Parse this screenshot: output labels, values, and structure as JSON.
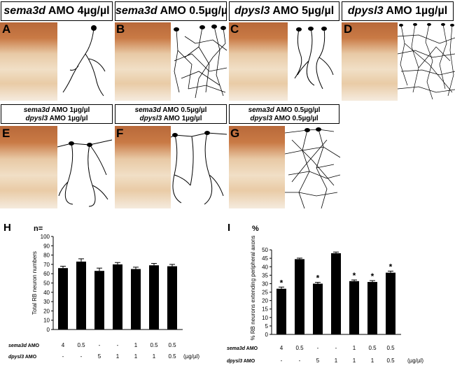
{
  "row1_headers": [
    {
      "gene": "sema3d",
      "rest": " AMO 4µg/µl"
    },
    {
      "gene": "sema3d",
      "rest": " AMO 0.5µg/µl"
    },
    {
      "gene": "dpysl3",
      "rest": " AMO 5µg/µl"
    },
    {
      "gene": "dpysl3",
      "rest": " AMO 1µg/µl"
    }
  ],
  "row2_headers": [
    {
      "line1_gene": "sema3d",
      "line1_rest": " AMO 1µg/µl",
      "line2_gene": "dpysl3",
      "line2_rest": " AMO 1µg/µl"
    },
    {
      "line1_gene": "sema3d",
      "line1_rest": " AMO 0.5µg/µl",
      "line2_gene": "dpysl3",
      "line2_rest": " AMO 1µg/µl"
    },
    {
      "line1_gene": "sema3d",
      "line1_rest": " AMO 0.5µg/µl",
      "line2_gene": "dpysl3",
      "line2_rest": " AMO 0.5µg/µl"
    }
  ],
  "panel_labels": [
    "A",
    "B",
    "C",
    "D",
    "E",
    "F",
    "G"
  ],
  "colors": {
    "stain": "#c07040",
    "bar": "#000000"
  },
  "chart_data": [
    {
      "panel": "H",
      "type": "bar",
      "title": "",
      "n_label": "n=",
      "ylabel": "Total RB neuron numbers",
      "ylim": [
        0,
        100
      ],
      "yticks": [
        "0",
        "10",
        "20",
        "30",
        "40",
        "50",
        "60",
        "70",
        "80",
        "90",
        "100"
      ],
      "values": [
        66,
        73,
        63,
        70,
        65,
        69,
        68
      ],
      "errors": [
        2,
        3,
        3,
        2,
        2,
        2,
        2
      ],
      "row_labels": [
        {
          "gene": "sema3d",
          "rest": " AMO",
          "values": [
            "4",
            "0.5",
            "-",
            "-",
            "1",
            "0.5",
            "0.5"
          ]
        },
        {
          "gene": "dpysl3",
          "rest": " AMO",
          "values": [
            "-",
            "-",
            "5",
            "1",
            "1",
            "1",
            "0.5"
          ]
        }
      ],
      "unit": "(µg/µl)",
      "grid": false
    },
    {
      "panel": "I",
      "type": "bar",
      "title": "",
      "n_label": "%",
      "ylabel": "% RB neurons extending peripheral axons",
      "ylim": [
        0,
        55
      ],
      "yticks": [
        "0",
        "5",
        "10",
        "15",
        "20",
        "25",
        "30",
        "35",
        "40",
        "45",
        "50"
      ],
      "values": [
        27,
        44.5,
        30,
        48,
        31.5,
        31,
        36.5
      ],
      "errors": [
        1,
        0.6,
        0.8,
        0.7,
        0.7,
        0.8,
        0.9
      ],
      "significance": [
        "*",
        "",
        "*",
        "",
        "*",
        "*",
        "*"
      ],
      "row_labels": [
        {
          "gene": "sema3d",
          "rest": " AMO",
          "values": [
            "4",
            "0.5",
            "-",
            "-",
            "1",
            "0.5",
            "0.5"
          ]
        },
        {
          "gene": "dpysl3",
          "rest": " AMO",
          "values": [
            "-",
            "-",
            "5",
            "1",
            "1",
            "1",
            "0.5"
          ]
        }
      ],
      "unit": "(µg/µl)",
      "grid": false
    }
  ]
}
